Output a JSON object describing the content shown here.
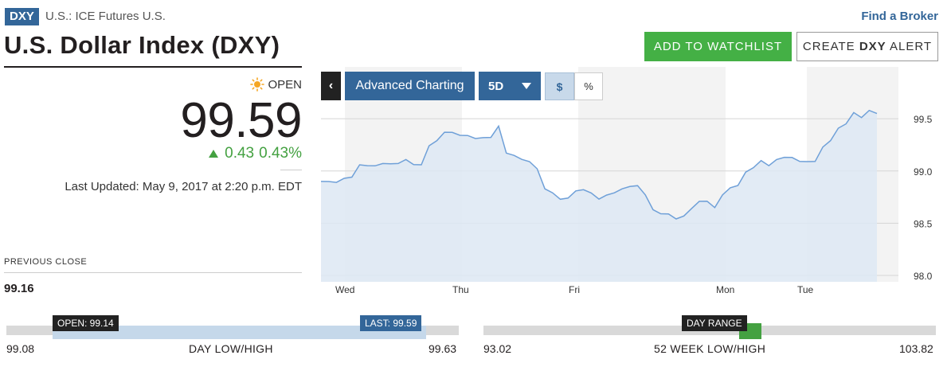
{
  "header": {
    "ticker": "DXY",
    "exchange": "U.S.: ICE Futures U.S.",
    "title": "U.S. Dollar Index (DXY)",
    "find_broker": "Find a Broker",
    "watchlist_label": "ADD TO WATCHLIST",
    "alert_prefix": "CREATE",
    "alert_ticker": "DXY",
    "alert_suffix": "ALERT"
  },
  "quote": {
    "status": "OPEN",
    "price": "99.59",
    "change": "0.43",
    "change_pct": "0.43%",
    "last_updated": "Last Updated: May 9, 2017 at 2:20 p.m. EDT",
    "prev_close_label": "PREVIOUS CLOSE",
    "prev_close": "99.16"
  },
  "chart_controls": {
    "collapse_label": "‹",
    "advanced_label": "Advanced Charting",
    "range_label": "5D",
    "dollar_label": "$",
    "percent_label": "%"
  },
  "chart_data": {
    "type": "area",
    "x_labels": [
      "Wed",
      "Thu",
      "Fri",
      "Mon",
      "Tue"
    ],
    "y_ticks": [
      "99.5",
      "99.0",
      "98.5",
      "98.0"
    ],
    "ylim": [
      98.0,
      99.6
    ],
    "grid": true,
    "series": [
      {
        "values": [
          98.9,
          98.89,
          98.9,
          98.92,
          98.95,
          99.05,
          99.06,
          99.04,
          99.08,
          99.06,
          99.08,
          99.1,
          99.07,
          99.05,
          99.25,
          99.28,
          99.38,
          99.36,
          99.35,
          99.33,
          99.32,
          99.31,
          99.33,
          99.42,
          99.18,
          99.14,
          99.12,
          99.08,
          99.03,
          98.82,
          98.8,
          98.72,
          98.75,
          98.8,
          98.83,
          98.78,
          98.74,
          98.76,
          98.8,
          98.82,
          98.86,
          98.85,
          98.78,
          98.62,
          98.6,
          98.58,
          98.55,
          98.56,
          98.65,
          98.7,
          98.72,
          98.64,
          98.78,
          98.83,
          98.87,
          98.98,
          99.04,
          99.09,
          99.06,
          99.1,
          99.14,
          99.12,
          99.1,
          99.08,
          99.1,
          99.22,
          99.3,
          99.4,
          99.46,
          99.55,
          99.52,
          99.57,
          99.55
        ]
      }
    ],
    "colors": {
      "line": "#6fa0d8",
      "fill": "#dde8f3",
      "shade": "#f3f3f3"
    }
  },
  "ranges": {
    "day": {
      "low": "99.08",
      "high": "99.63",
      "label": "DAY LOW/HIGH",
      "open_flag": "OPEN: 99.14",
      "last_flag": "LAST: 99.59"
    },
    "year": {
      "low": "93.02",
      "high": "103.82",
      "label": "52 WEEK LOW/HIGH",
      "flag": "DAY RANGE"
    }
  }
}
